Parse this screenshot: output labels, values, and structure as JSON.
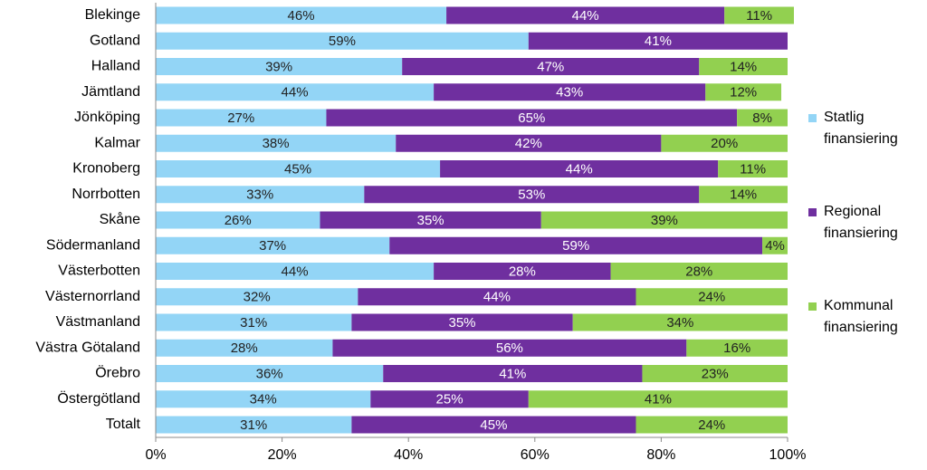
{
  "chart_data": {
    "type": "stacked-bar-horizontal",
    "categories": [
      "Blekinge",
      "Gotland",
      "Halland",
      "Jämtland",
      "Jönköping",
      "Kalmar",
      "Kronoberg",
      "Norrbotten",
      "Skåne",
      "Södermanland",
      "Västerbotten",
      "Västernorrland",
      "Västmanland",
      "Västra Götaland",
      "Örebro",
      "Östergötland",
      "Totalt"
    ],
    "series": [
      {
        "name": "Statlig finansiering",
        "color": "#93d5f6",
        "values": [
          46,
          59,
          39,
          44,
          27,
          38,
          45,
          33,
          26,
          37,
          44,
          32,
          31,
          28,
          36,
          34,
          31
        ],
        "value_labels": [
          "46%",
          "59%",
          "39%",
          "44%",
          "27%",
          "38%",
          "45%",
          "33%",
          "26%",
          "37%",
          "44%",
          "32%",
          "31%",
          "28%",
          "36%",
          "34%",
          "31%"
        ]
      },
      {
        "name": "Regional finansiering",
        "color": "#6f2f9f",
        "values": [
          44,
          41,
          47,
          43,
          65,
          42,
          44,
          53,
          35,
          59,
          28,
          44,
          35,
          56,
          41,
          25,
          45
        ],
        "value_labels": [
          "44%",
          "41%",
          "47%",
          "43%",
          "65%",
          "42%",
          "44%",
          "53%",
          "35%",
          "59%",
          "28%",
          "44%",
          "35%",
          "56%",
          "41%",
          "25%",
          "45%"
        ]
      },
      {
        "name": "Kommunal finansiering",
        "color": "#92d050",
        "values": [
          11,
          0,
          14,
          12,
          8,
          20,
          11,
          14,
          39,
          4,
          28,
          24,
          34,
          16,
          23,
          41,
          24
        ],
        "value_labels": [
          "11%",
          null,
          "14%",
          "12%",
          "8%",
          "20%",
          "11%",
          "14%",
          "39%",
          "4%",
          "28%",
          "24%",
          "34%",
          "16%",
          "23%",
          "41%",
          "24%"
        ]
      }
    ],
    "xlim": [
      0,
      100
    ],
    "xticks": [
      {
        "value": 0,
        "label": "0%"
      },
      {
        "value": 20,
        "label": "20%"
      },
      {
        "value": 40,
        "label": "40%"
      },
      {
        "value": 60,
        "label": "60%"
      },
      {
        "value": 80,
        "label": "80%"
      },
      {
        "value": 100,
        "label": "100%"
      }
    ],
    "legend": "right"
  }
}
